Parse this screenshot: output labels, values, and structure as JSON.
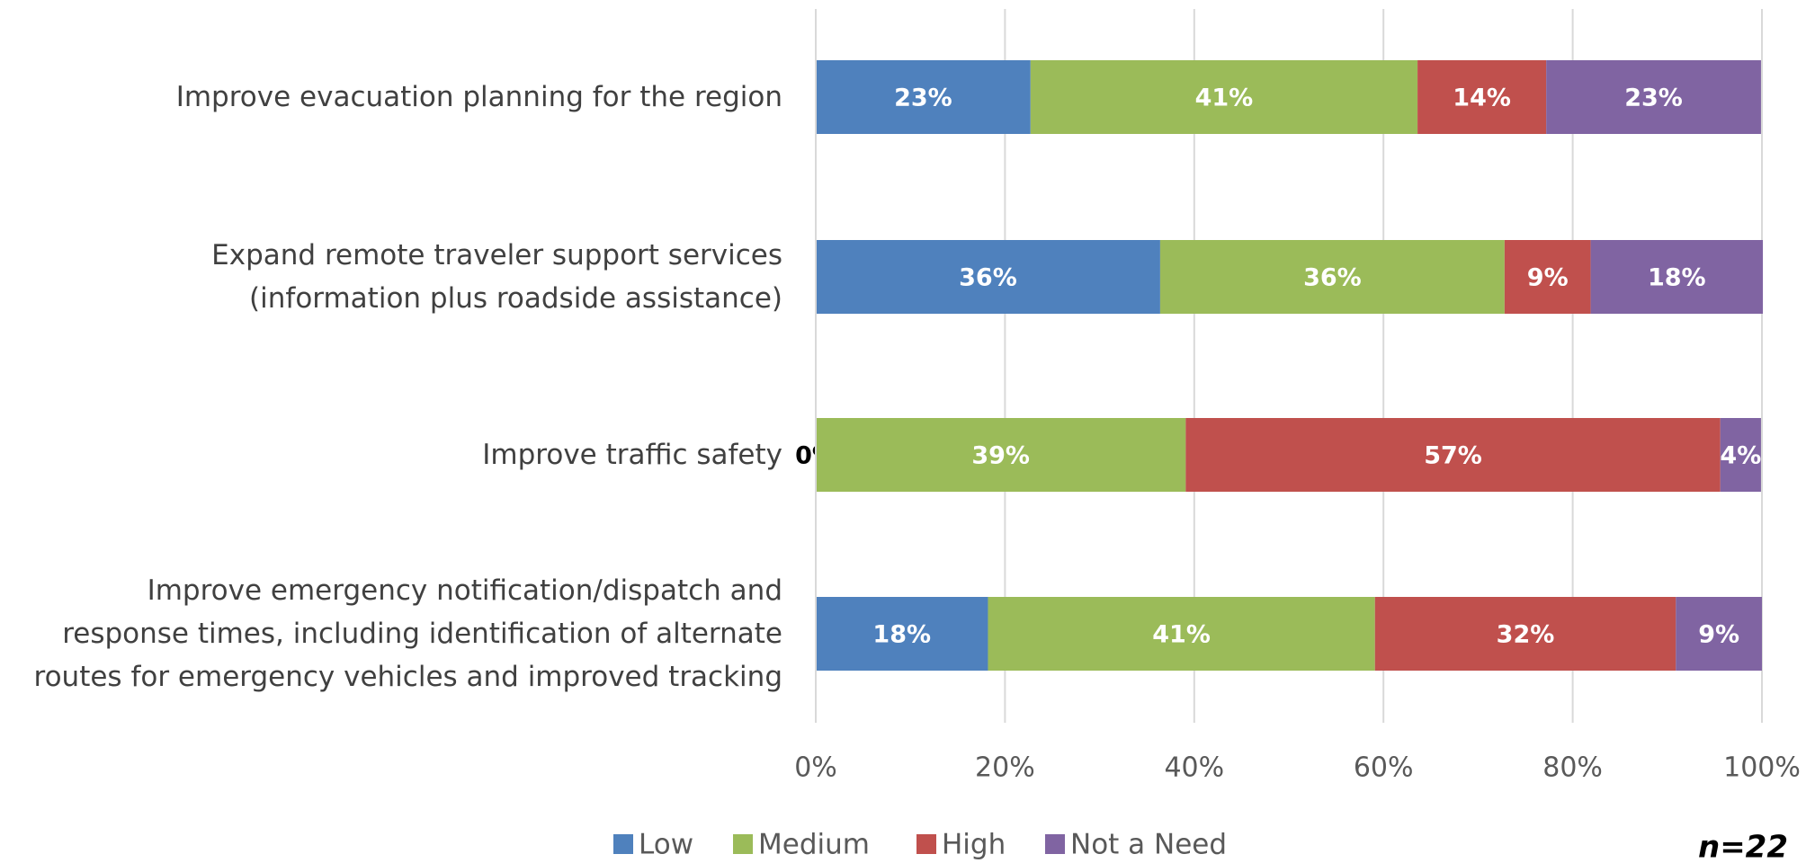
{
  "chart_data": {
    "type": "stacked-barh",
    "categories": [
      "Improve evacuation planning for the region",
      "Expand remote traveler support services\n(information plus roadside assistance)",
      "Improve traffic safety",
      "Improve emergency notification/dispatch and\nresponse times, including identification of alternate\nroutes for emergency vehicles and improved tracking"
    ],
    "series": [
      {
        "name": "Low",
        "color": "#4f81bd",
        "values": [
          22.7,
          36.4,
          0,
          18.2
        ],
        "value_labels": [
          "23%",
          "36%",
          "0%",
          "18%"
        ]
      },
      {
        "name": "Medium",
        "color": "#9bbb59",
        "values": [
          40.9,
          36.4,
          39.1,
          40.9
        ],
        "value_labels": [
          "41%",
          "36%",
          "39%",
          "41%"
        ]
      },
      {
        "name": "High",
        "color": "#c0504d",
        "values": [
          13.6,
          9.1,
          56.5,
          31.8
        ],
        "value_labels": [
          "14%",
          "9%",
          "57%",
          "32%"
        ]
      },
      {
        "name": "Not a Need",
        "color": "#8064a2",
        "values": [
          22.7,
          18.2,
          4.3,
          9.1
        ],
        "value_labels": [
          "23%",
          "18%",
          "4%",
          "9%"
        ]
      }
    ],
    "xlim": [
      0,
      100
    ],
    "xticks": [
      {
        "value": 0,
        "label": "0%"
      },
      {
        "value": 20,
        "label": "20%"
      },
      {
        "value": 40,
        "label": "40%"
      },
      {
        "value": 60,
        "label": "60%"
      },
      {
        "value": 80,
        "label": "80%"
      },
      {
        "value": 100,
        "label": "100%"
      }
    ],
    "grid": true,
    "legend": "bottom",
    "annotation": "n=22"
  }
}
